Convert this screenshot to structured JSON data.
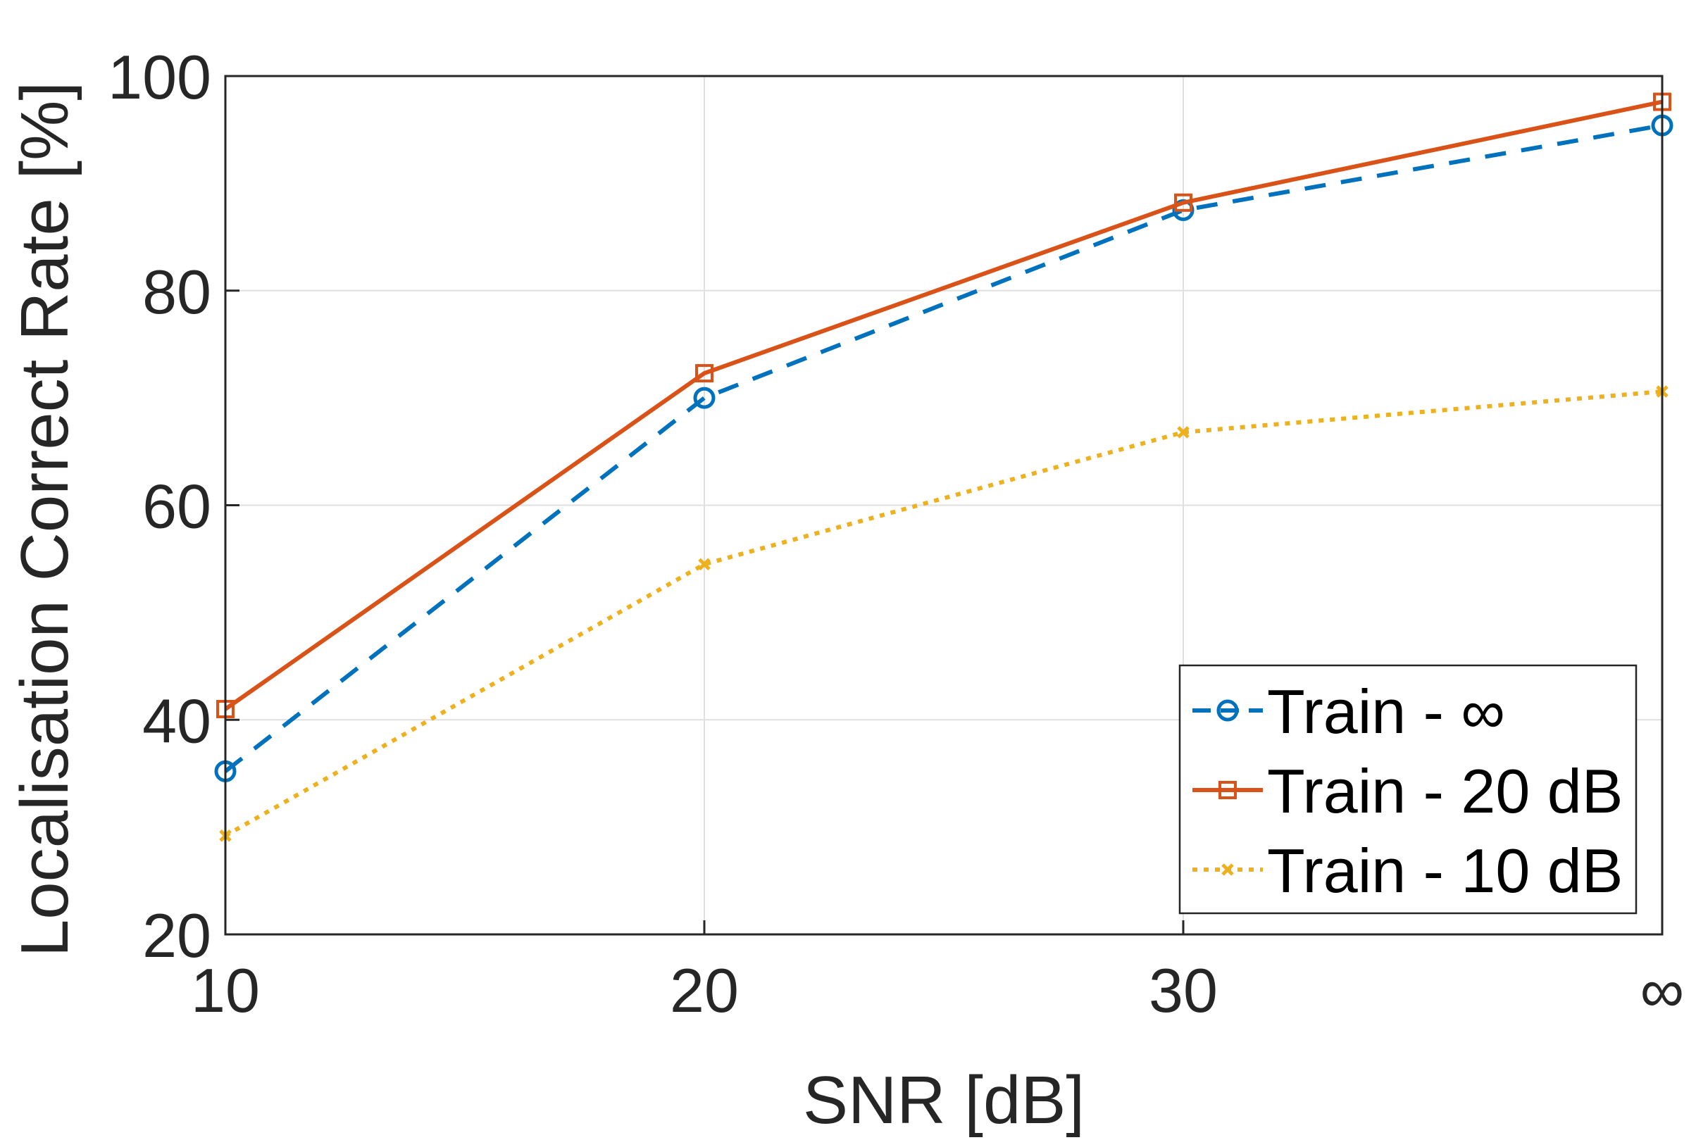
{
  "chart_data": {
    "type": "line",
    "title": "",
    "xlabel": "SNR [dB]",
    "ylabel": "Localisation Correct Rate [%]",
    "categories": [
      "10",
      "20",
      "30",
      "∞"
    ],
    "ylim": [
      20,
      100
    ],
    "yticks": [
      "20",
      "40",
      "60",
      "80",
      "100"
    ],
    "grid": true,
    "legend_position": "bottom-right",
    "series": [
      {
        "name": "Train - ∞",
        "values": [
          35.2,
          70.0,
          87.5,
          95.4
        ],
        "color": "#0072BD",
        "line": "dashed",
        "marker": "circle"
      },
      {
        "name": "Train - 20 dB",
        "values": [
          41.0,
          72.3,
          88.2,
          97.6
        ],
        "color": "#D95319",
        "line": "solid",
        "marker": "square"
      },
      {
        "name": "Train - 10 dB",
        "values": [
          29.2,
          54.5,
          66.8,
          70.6
        ],
        "color": "#EDB120",
        "line": "dotted",
        "marker": "x"
      }
    ]
  }
}
